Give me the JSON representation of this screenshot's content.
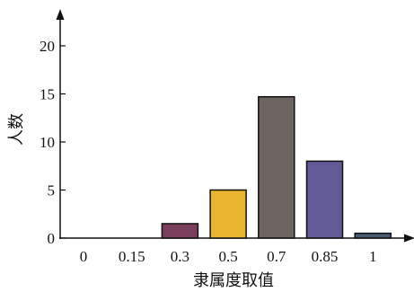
{
  "chart_data": {
    "type": "bar",
    "categories": [
      "0",
      "0.15",
      "0.3",
      "0.5",
      "0.7",
      "0.85",
      "1"
    ],
    "values": [
      0,
      0,
      1.5,
      5,
      14.7,
      8,
      0.5
    ],
    "colors": [
      "#7b3f5e",
      "#7b3f5e",
      "#7b3f5e",
      "#e9b430",
      "#6d6360",
      "#615a96",
      "#4a5a72"
    ],
    "xlabel": "隶属度取值",
    "ylabel": "人数",
    "ylim": [
      0,
      20
    ],
    "yticks": [
      "0",
      "5",
      "10",
      "15",
      "20"
    ],
    "grid": false,
    "legend": "none"
  }
}
